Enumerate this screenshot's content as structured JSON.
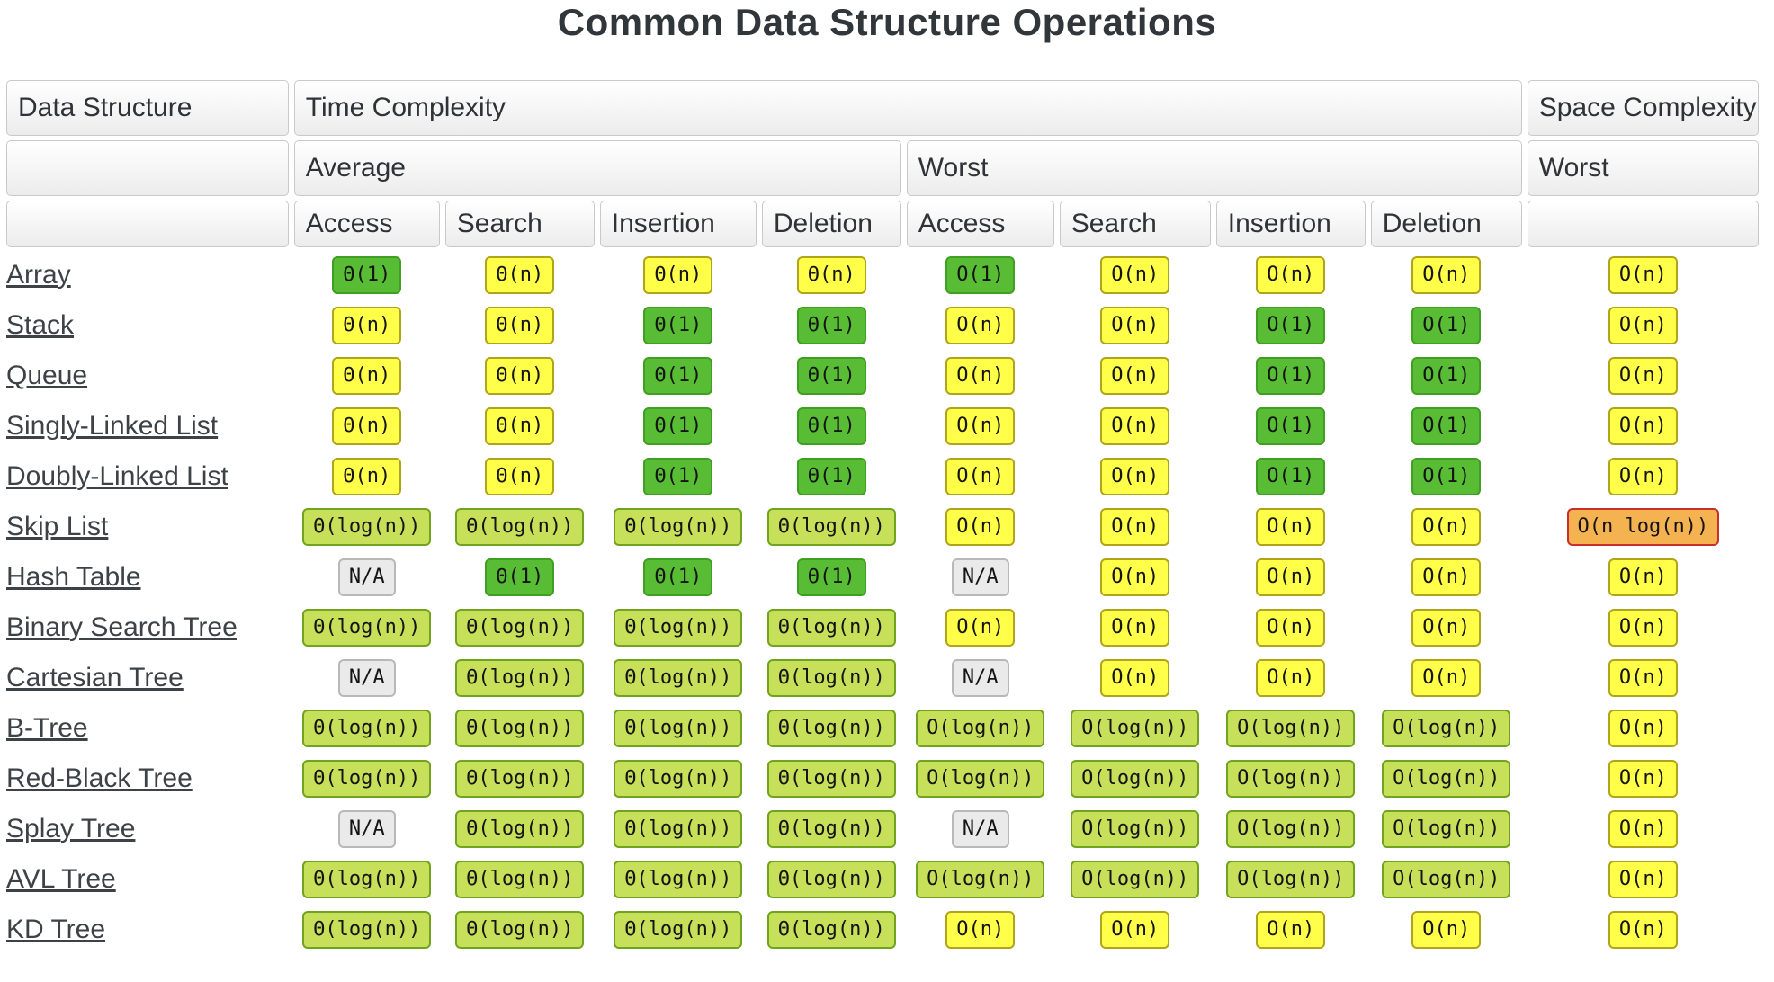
{
  "title": "Common Data Structure Operations",
  "header": {
    "data_structure": "Data Structure",
    "time_complexity": "Time Complexity",
    "space_complexity": "Space Complexity",
    "average": "Average",
    "worst": "Worst",
    "space_worst": "Worst",
    "ops": [
      "Access",
      "Search",
      "Insertion",
      "Deletion",
      "Access",
      "Search",
      "Insertion",
      "Deletion"
    ]
  },
  "badge_styles": {
    "green": {
      "bg": "#58bd34",
      "border": "#409f23"
    },
    "yellow": {
      "bg": "#ffff4a",
      "border": "#b0a41a"
    },
    "yellowgreen": {
      "bg": "#c6e05a",
      "border": "#71a31e"
    },
    "orange": {
      "bg": "#f4b350",
      "border": "#c9302c"
    },
    "gray": {
      "bg": "#eaeaea",
      "border": "#b8b8b8"
    }
  },
  "rows": [
    {
      "name": "Array",
      "cells": [
        [
          "Θ(1)",
          "green"
        ],
        [
          "Θ(n)",
          "yellow"
        ],
        [
          "Θ(n)",
          "yellow"
        ],
        [
          "Θ(n)",
          "yellow"
        ],
        [
          "O(1)",
          "green"
        ],
        [
          "O(n)",
          "yellow"
        ],
        [
          "O(n)",
          "yellow"
        ],
        [
          "O(n)",
          "yellow"
        ],
        [
          "O(n)",
          "yellow"
        ]
      ]
    },
    {
      "name": "Stack",
      "cells": [
        [
          "Θ(n)",
          "yellow"
        ],
        [
          "Θ(n)",
          "yellow"
        ],
        [
          "Θ(1)",
          "green"
        ],
        [
          "Θ(1)",
          "green"
        ],
        [
          "O(n)",
          "yellow"
        ],
        [
          "O(n)",
          "yellow"
        ],
        [
          "O(1)",
          "green"
        ],
        [
          "O(1)",
          "green"
        ],
        [
          "O(n)",
          "yellow"
        ]
      ]
    },
    {
      "name": "Queue",
      "cells": [
        [
          "Θ(n)",
          "yellow"
        ],
        [
          "Θ(n)",
          "yellow"
        ],
        [
          "Θ(1)",
          "green"
        ],
        [
          "Θ(1)",
          "green"
        ],
        [
          "O(n)",
          "yellow"
        ],
        [
          "O(n)",
          "yellow"
        ],
        [
          "O(1)",
          "green"
        ],
        [
          "O(1)",
          "green"
        ],
        [
          "O(n)",
          "yellow"
        ]
      ]
    },
    {
      "name": "Singly-Linked List",
      "cells": [
        [
          "Θ(n)",
          "yellow"
        ],
        [
          "Θ(n)",
          "yellow"
        ],
        [
          "Θ(1)",
          "green"
        ],
        [
          "Θ(1)",
          "green"
        ],
        [
          "O(n)",
          "yellow"
        ],
        [
          "O(n)",
          "yellow"
        ],
        [
          "O(1)",
          "green"
        ],
        [
          "O(1)",
          "green"
        ],
        [
          "O(n)",
          "yellow"
        ]
      ]
    },
    {
      "name": "Doubly-Linked List",
      "cells": [
        [
          "Θ(n)",
          "yellow"
        ],
        [
          "Θ(n)",
          "yellow"
        ],
        [
          "Θ(1)",
          "green"
        ],
        [
          "Θ(1)",
          "green"
        ],
        [
          "O(n)",
          "yellow"
        ],
        [
          "O(n)",
          "yellow"
        ],
        [
          "O(1)",
          "green"
        ],
        [
          "O(1)",
          "green"
        ],
        [
          "O(n)",
          "yellow"
        ]
      ]
    },
    {
      "name": "Skip List",
      "cells": [
        [
          "Θ(log(n))",
          "yellowgreen"
        ],
        [
          "Θ(log(n))",
          "yellowgreen"
        ],
        [
          "Θ(log(n))",
          "yellowgreen"
        ],
        [
          "Θ(log(n))",
          "yellowgreen"
        ],
        [
          "O(n)",
          "yellow"
        ],
        [
          "O(n)",
          "yellow"
        ],
        [
          "O(n)",
          "yellow"
        ],
        [
          "O(n)",
          "yellow"
        ],
        [
          "O(n log(n))",
          "orange"
        ]
      ]
    },
    {
      "name": "Hash Table",
      "cells": [
        [
          "N/A",
          "gray"
        ],
        [
          "Θ(1)",
          "green"
        ],
        [
          "Θ(1)",
          "green"
        ],
        [
          "Θ(1)",
          "green"
        ],
        [
          "N/A",
          "gray"
        ],
        [
          "O(n)",
          "yellow"
        ],
        [
          "O(n)",
          "yellow"
        ],
        [
          "O(n)",
          "yellow"
        ],
        [
          "O(n)",
          "yellow"
        ]
      ]
    },
    {
      "name": "Binary Search Tree",
      "cells": [
        [
          "Θ(log(n))",
          "yellowgreen"
        ],
        [
          "Θ(log(n))",
          "yellowgreen"
        ],
        [
          "Θ(log(n))",
          "yellowgreen"
        ],
        [
          "Θ(log(n))",
          "yellowgreen"
        ],
        [
          "O(n)",
          "yellow"
        ],
        [
          "O(n)",
          "yellow"
        ],
        [
          "O(n)",
          "yellow"
        ],
        [
          "O(n)",
          "yellow"
        ],
        [
          "O(n)",
          "yellow"
        ]
      ]
    },
    {
      "name": "Cartesian Tree",
      "cells": [
        [
          "N/A",
          "gray"
        ],
        [
          "Θ(log(n))",
          "yellowgreen"
        ],
        [
          "Θ(log(n))",
          "yellowgreen"
        ],
        [
          "Θ(log(n))",
          "yellowgreen"
        ],
        [
          "N/A",
          "gray"
        ],
        [
          "O(n)",
          "yellow"
        ],
        [
          "O(n)",
          "yellow"
        ],
        [
          "O(n)",
          "yellow"
        ],
        [
          "O(n)",
          "yellow"
        ]
      ]
    },
    {
      "name": "B-Tree",
      "cells": [
        [
          "Θ(log(n))",
          "yellowgreen"
        ],
        [
          "Θ(log(n))",
          "yellowgreen"
        ],
        [
          "Θ(log(n))",
          "yellowgreen"
        ],
        [
          "Θ(log(n))",
          "yellowgreen"
        ],
        [
          "O(log(n))",
          "yellowgreen"
        ],
        [
          "O(log(n))",
          "yellowgreen"
        ],
        [
          "O(log(n))",
          "yellowgreen"
        ],
        [
          "O(log(n))",
          "yellowgreen"
        ],
        [
          "O(n)",
          "yellow"
        ]
      ]
    },
    {
      "name": "Red-Black Tree",
      "cells": [
        [
          "Θ(log(n))",
          "yellowgreen"
        ],
        [
          "Θ(log(n))",
          "yellowgreen"
        ],
        [
          "Θ(log(n))",
          "yellowgreen"
        ],
        [
          "Θ(log(n))",
          "yellowgreen"
        ],
        [
          "O(log(n))",
          "yellowgreen"
        ],
        [
          "O(log(n))",
          "yellowgreen"
        ],
        [
          "O(log(n))",
          "yellowgreen"
        ],
        [
          "O(log(n))",
          "yellowgreen"
        ],
        [
          "O(n)",
          "yellow"
        ]
      ]
    },
    {
      "name": "Splay Tree",
      "cells": [
        [
          "N/A",
          "gray"
        ],
        [
          "Θ(log(n))",
          "yellowgreen"
        ],
        [
          "Θ(log(n))",
          "yellowgreen"
        ],
        [
          "Θ(log(n))",
          "yellowgreen"
        ],
        [
          "N/A",
          "gray"
        ],
        [
          "O(log(n))",
          "yellowgreen"
        ],
        [
          "O(log(n))",
          "yellowgreen"
        ],
        [
          "O(log(n))",
          "yellowgreen"
        ],
        [
          "O(n)",
          "yellow"
        ]
      ]
    },
    {
      "name": "AVL Tree",
      "cells": [
        [
          "Θ(log(n))",
          "yellowgreen"
        ],
        [
          "Θ(log(n))",
          "yellowgreen"
        ],
        [
          "Θ(log(n))",
          "yellowgreen"
        ],
        [
          "Θ(log(n))",
          "yellowgreen"
        ],
        [
          "O(log(n))",
          "yellowgreen"
        ],
        [
          "O(log(n))",
          "yellowgreen"
        ],
        [
          "O(log(n))",
          "yellowgreen"
        ],
        [
          "O(log(n))",
          "yellowgreen"
        ],
        [
          "O(n)",
          "yellow"
        ]
      ]
    },
    {
      "name": "KD Tree",
      "cells": [
        [
          "Θ(log(n))",
          "yellowgreen"
        ],
        [
          "Θ(log(n))",
          "yellowgreen"
        ],
        [
          "Θ(log(n))",
          "yellowgreen"
        ],
        [
          "Θ(log(n))",
          "yellowgreen"
        ],
        [
          "O(n)",
          "yellow"
        ],
        [
          "O(n)",
          "yellow"
        ],
        [
          "O(n)",
          "yellow"
        ],
        [
          "O(n)",
          "yellow"
        ],
        [
          "O(n)",
          "yellow"
        ]
      ]
    }
  ]
}
